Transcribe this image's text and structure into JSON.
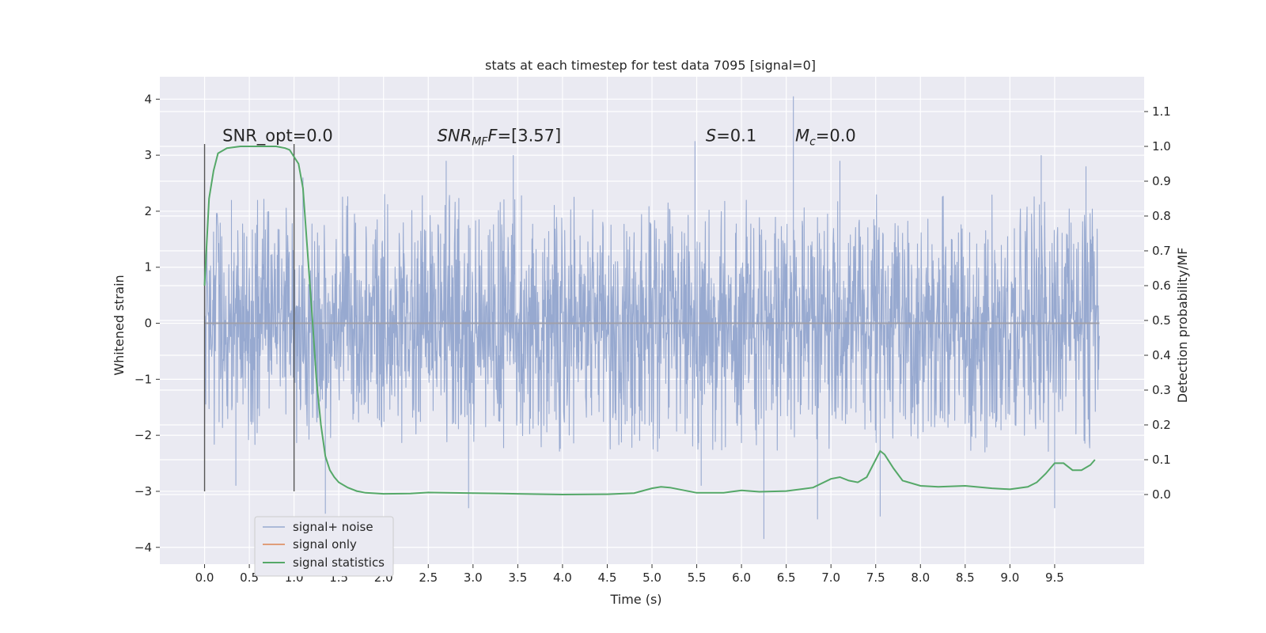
{
  "chart_data": {
    "type": "line",
    "title": "stats at each timestep for test data 7095 [signal=0]",
    "xlabel": "Time (s)",
    "ylabel_left": "Whitened strain",
    "ylabel_right": "Detection probability/MF",
    "xlim": [
      -0.5,
      10.5
    ],
    "ylim_left": [
      -4.3,
      4.4
    ],
    "ylim_right": [
      -0.2,
      1.2
    ],
    "x_ticks": [
      0.0,
      0.5,
      1.0,
      1.5,
      2.0,
      2.5,
      3.0,
      3.5,
      4.0,
      4.5,
      5.0,
      5.5,
      6.0,
      6.5,
      7.0,
      7.5,
      8.0,
      8.5,
      9.0,
      9.5
    ],
    "x_tick_labels": [
      "0.0",
      "0.5",
      "1.0",
      "1.5",
      "2.0",
      "2.5",
      "3.0",
      "3.5",
      "4.0",
      "4.5",
      "5.0",
      "5.5",
      "6.0",
      "6.5",
      "7.0",
      "7.5",
      "8.0",
      "8.5",
      "9.0",
      "9.5"
    ],
    "y_left_ticks": [
      4,
      3,
      2,
      1,
      0,
      -1,
      -2,
      -3,
      -4
    ],
    "y_left_tick_labels": [
      "4",
      "3",
      "2",
      "1",
      "0",
      "−1",
      "−2",
      "−3",
      "−4"
    ],
    "y_right_ticks": [
      1.1,
      1.0,
      0.9,
      0.8,
      0.7,
      0.6,
      0.5,
      0.4,
      0.3,
      0.2,
      0.1,
      0.0
    ],
    "y_right_tick_labels": [
      "1.1",
      "1.0",
      "0.9",
      "0.8",
      "0.7",
      "0.6",
      "0.5",
      "0.4",
      "0.3",
      "0.2",
      "0.1",
      "0.0"
    ],
    "grid": true,
    "legend_position": "lower-left",
    "colors": {
      "background": "#eaeaf2",
      "grid": "#ffffff",
      "noise": "#97a9d0",
      "signal_only": "#dd8452",
      "statistics": "#55a868",
      "vline": "#555555"
    },
    "vlines": [
      {
        "x": 0.0,
        "y_range": [
          -3.0,
          3.2
        ]
      },
      {
        "x": 1.0,
        "y_range": [
          -3.0,
          3.2
        ]
      }
    ],
    "annotations": [
      {
        "x": 0.2,
        "y": 3.25,
        "prefix": "SNR_opt=",
        "value": "0.0"
      },
      {
        "x": 2.6,
        "y": 3.25,
        "label": "SNR",
        "subscript": "MF",
        "suffix": "F",
        "value": "=[3.57]"
      },
      {
        "x": 5.6,
        "y": 3.25,
        "label": "S",
        "value": "=0.1"
      },
      {
        "x": 6.6,
        "y": 3.25,
        "label": "M",
        "subscript": "c",
        "value": "=0.0"
      }
    ],
    "series": [
      {
        "name": "signal+ noise",
        "axis": "left",
        "x_range": [
          0.0,
          10.0
        ],
        "envelope_upper_typical": 1.9,
        "envelope_lower_typical": -1.9,
        "peaks": [
          [
            0.3,
            2.2
          ],
          [
            1.1,
            2.6
          ],
          [
            2.7,
            2.9
          ],
          [
            3.45,
            3.0
          ],
          [
            5.48,
            3.25
          ],
          [
            6.58,
            4.05
          ],
          [
            7.1,
            2.9
          ],
          [
            9.35,
            3.0
          ],
          [
            9.85,
            2.8
          ]
        ],
        "troughs": [
          [
            0.35,
            -2.9
          ],
          [
            1.35,
            -3.4
          ],
          [
            2.95,
            -3.3
          ],
          [
            5.55,
            -2.9
          ],
          [
            6.25,
            -3.85
          ],
          [
            6.85,
            -3.5
          ],
          [
            7.55,
            -3.45
          ],
          [
            9.5,
            -3.3
          ]
        ]
      },
      {
        "name": "signal only",
        "axis": "left",
        "x": [
          0.0,
          10.0
        ],
        "y": [
          0.0,
          0.0
        ]
      },
      {
        "name": "signal statistics",
        "axis": "right",
        "x": [
          0.0,
          0.05,
          0.1,
          0.15,
          0.25,
          0.4,
          0.6,
          0.8,
          0.9,
          0.95,
          1.0,
          1.05,
          1.1,
          1.15,
          1.2,
          1.25,
          1.3,
          1.35,
          1.4,
          1.45,
          1.5,
          1.6,
          1.7,
          1.8,
          2.0,
          2.3,
          2.5,
          3.0,
          3.5,
          4.0,
          4.5,
          4.8,
          5.0,
          5.1,
          5.2,
          5.5,
          5.8,
          6.0,
          6.2,
          6.5,
          6.8,
          7.0,
          7.1,
          7.2,
          7.3,
          7.4,
          7.5,
          7.55,
          7.6,
          7.7,
          7.8,
          8.0,
          8.2,
          8.5,
          8.8,
          9.0,
          9.2,
          9.3,
          9.4,
          9.5,
          9.6,
          9.7,
          9.8,
          9.9,
          9.95
        ],
        "y": [
          0.6,
          0.85,
          0.93,
          0.98,
          0.995,
          1.0,
          1.0,
          1.0,
          0.995,
          0.99,
          0.97,
          0.95,
          0.88,
          0.7,
          0.52,
          0.33,
          0.2,
          0.11,
          0.07,
          0.05,
          0.035,
          0.02,
          0.01,
          0.005,
          0.002,
          0.003,
          0.006,
          0.004,
          0.002,
          0.0,
          0.001,
          0.004,
          0.018,
          0.022,
          0.02,
          0.005,
          0.005,
          0.012,
          0.008,
          0.01,
          0.02,
          0.045,
          0.05,
          0.04,
          0.035,
          0.05,
          0.1,
          0.125,
          0.115,
          0.075,
          0.04,
          0.025,
          0.022,
          0.025,
          0.018,
          0.015,
          0.022,
          0.035,
          0.06,
          0.09,
          0.09,
          0.07,
          0.07,
          0.085,
          0.1
        ]
      }
    ],
    "legend": [
      {
        "label": "signal+ noise"
      },
      {
        "label": "signal only"
      },
      {
        "label": "signal statistics"
      }
    ]
  }
}
